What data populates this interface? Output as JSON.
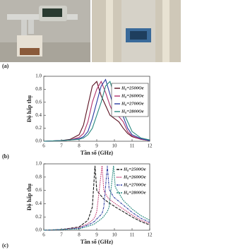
{
  "panel_labels": [
    "(a)",
    "(b)",
    "(c)"
  ],
  "chart_data": [
    {
      "type": "line",
      "line_style": "solid",
      "legend_box": true,
      "y_label": "Độ hấp thụ",
      "x_label": "Tần số (GHz)",
      "x": [
        6,
        7,
        7.5,
        8,
        8.25,
        8.5,
        8.75,
        9,
        9.25,
        9.5,
        9.75,
        10,
        10.25,
        10.5,
        10.75,
        11,
        11.5,
        12
      ],
      "series": [
        {
          "name": "H₀=2500Oe",
          "color": "#5a1020",
          "values": [
            0,
            0.01,
            0.03,
            0.1,
            0.25,
            0.55,
            0.85,
            0.92,
            0.7,
            0.55,
            0.4,
            0.35,
            0.3,
            0.2,
            0.12,
            0.07,
            0.03,
            0.01
          ]
        },
        {
          "name": "H₀=2600Oe",
          "color": "#b0306a",
          "values": [
            0,
            0.01,
            0.02,
            0.06,
            0.12,
            0.3,
            0.6,
            0.8,
            0.92,
            0.75,
            0.55,
            0.4,
            0.38,
            0.3,
            0.15,
            0.08,
            0.03,
            0.01
          ]
        },
        {
          "name": "H₀=2700Oe",
          "color": "#2a3aa0",
          "values": [
            0,
            0.01,
            0.02,
            0.04,
            0.07,
            0.15,
            0.35,
            0.6,
            0.85,
            0.95,
            0.72,
            0.5,
            0.45,
            0.38,
            0.2,
            0.1,
            0.04,
            0.01
          ]
        },
        {
          "name": "H₀=2800Oe",
          "color": "#2a8a80",
          "values": [
            0,
            0.01,
            0.02,
            0.03,
            0.05,
            0.1,
            0.2,
            0.4,
            0.6,
            0.85,
            0.92,
            0.7,
            0.5,
            0.45,
            0.3,
            0.15,
            0.05,
            0.02
          ]
        }
      ],
      "xlim": [
        6,
        12
      ],
      "xticks": [
        6,
        7,
        8,
        9,
        10,
        11,
        12
      ],
      "ylim": [
        0,
        1.0
      ],
      "yticks": [
        {
          "value": 0,
          "label": "0.0"
        },
        0.2,
        0.4,
        0.6,
        0.8,
        {
          "value": 1,
          "label": "1.0"
        }
      ]
    },
    {
      "type": "line",
      "line_style": "dashed",
      "legend_box": false,
      "y_label": "Độ hấp thụ",
      "x_label": "Tần số (GHz)",
      "x": [
        6,
        7,
        8,
        8.5,
        8.75,
        8.9,
        9,
        9.3,
        9.4,
        9.6,
        9.7,
        9.95,
        10.05,
        10.5,
        11,
        11.5,
        12
      ],
      "series": [
        {
          "name": "H₀=2500Oe",
          "color": "#1a1a1a",
          "values": [
            0,
            0.01,
            0.05,
            0.15,
            0.35,
            0.97,
            0.6,
            0.5,
            0.47,
            0.43,
            0.41,
            0.37,
            0.35,
            0.28,
            0.2,
            0.13,
            0.08
          ]
        },
        {
          "name": "H₀=2600Oe",
          "color": "#c0306a",
          "values": [
            0,
            0.01,
            0.04,
            0.1,
            0.15,
            0.2,
            0.28,
            0.97,
            0.6,
            0.5,
            0.47,
            0.42,
            0.4,
            0.32,
            0.23,
            0.15,
            0.1
          ]
        },
        {
          "name": "H₀=2700Oe",
          "color": "#2a3aa0",
          "values": [
            0,
            0.01,
            0.03,
            0.08,
            0.11,
            0.14,
            0.17,
            0.25,
            0.35,
            0.97,
            0.62,
            0.5,
            0.48,
            0.38,
            0.27,
            0.18,
            0.12
          ]
        },
        {
          "name": "H₀=2800Oe",
          "color": "#2a8a80",
          "values": [
            0,
            0.01,
            0.02,
            0.06,
            0.08,
            0.1,
            0.12,
            0.18,
            0.21,
            0.28,
            0.35,
            0.97,
            0.65,
            0.45,
            0.32,
            0.22,
            0.15
          ]
        }
      ],
      "xlim": [
        6,
        12
      ],
      "xticks": [
        6,
        7,
        8,
        9,
        10,
        11,
        12
      ],
      "ylim": [
        0,
        1.0
      ],
      "yticks": [
        {
          "value": 0,
          "label": "0.0"
        },
        0.2,
        0.4,
        0.6,
        0.8,
        {
          "value": 1,
          "label": "1.0"
        }
      ]
    }
  ]
}
